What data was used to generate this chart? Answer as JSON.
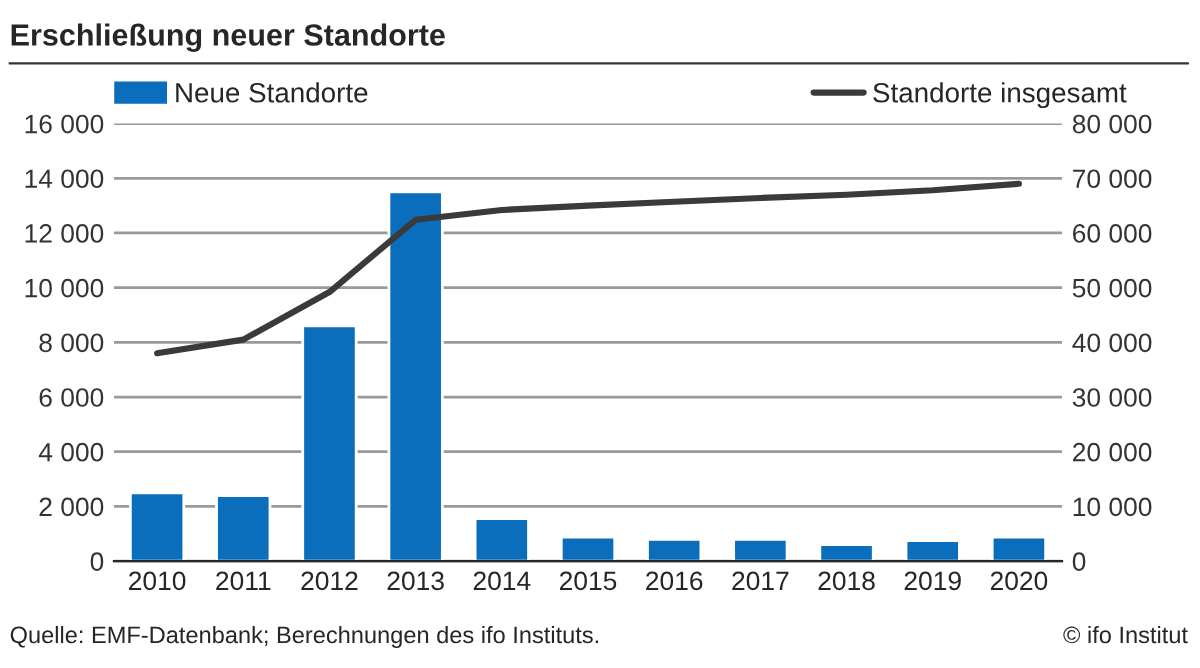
{
  "chart_data": {
    "type": "bar",
    "title": "Erschließung neuer Standorte",
    "categories": [
      "2010",
      "2011",
      "2012",
      "2013",
      "2014",
      "2015",
      "2016",
      "2017",
      "2018",
      "2019",
      "2020"
    ],
    "series": [
      {
        "name": "Neue Standorte",
        "color": "#0a6ebd",
        "values": [
          2500,
          2400,
          8600,
          13500,
          1550,
          880,
          800,
          800,
          600,
          750,
          880
        ]
      },
      {
        "name": "Standorte insgesamt",
        "type": "line",
        "axis": "y2",
        "color": "#3a3a3a",
        "values": [
          38000,
          40500,
          49200,
          62400,
          64200,
          65000,
          65700,
          66400,
          67000,
          67800,
          69000
        ]
      }
    ],
    "ylim": [
      0,
      16000
    ],
    "yticks": [
      {
        "value": 0,
        "label": "0"
      },
      {
        "value": 2000,
        "label": "2 000"
      },
      {
        "value": 4000,
        "label": "4 000"
      },
      {
        "value": 6000,
        "label": "6 000"
      },
      {
        "value": 8000,
        "label": "8 000"
      },
      {
        "value": 10000,
        "label": "10 000"
      },
      {
        "value": 12000,
        "label": "12 000"
      },
      {
        "value": 14000,
        "label": "14 000"
      },
      {
        "value": 16000,
        "label": "16 000"
      }
    ],
    "y2lim": [
      0,
      80000
    ],
    "y2ticks": [
      {
        "value": 0,
        "label": "0"
      },
      {
        "value": 10000,
        "label": "10 000"
      },
      {
        "value": 20000,
        "label": "20 000"
      },
      {
        "value": 30000,
        "label": "30 000"
      },
      {
        "value": 40000,
        "label": "40 000"
      },
      {
        "value": 50000,
        "label": "50 000"
      },
      {
        "value": 60000,
        "label": "60 000"
      },
      {
        "value": 70000,
        "label": "70 000"
      },
      {
        "value": 80000,
        "label": "80 000"
      }
    ],
    "grid": "y",
    "legend": "top",
    "annotations": [
      "Quelle: EMF-Datenbank; Berechnungen des ifo Instituts.",
      "© ifo Institut"
    ]
  }
}
